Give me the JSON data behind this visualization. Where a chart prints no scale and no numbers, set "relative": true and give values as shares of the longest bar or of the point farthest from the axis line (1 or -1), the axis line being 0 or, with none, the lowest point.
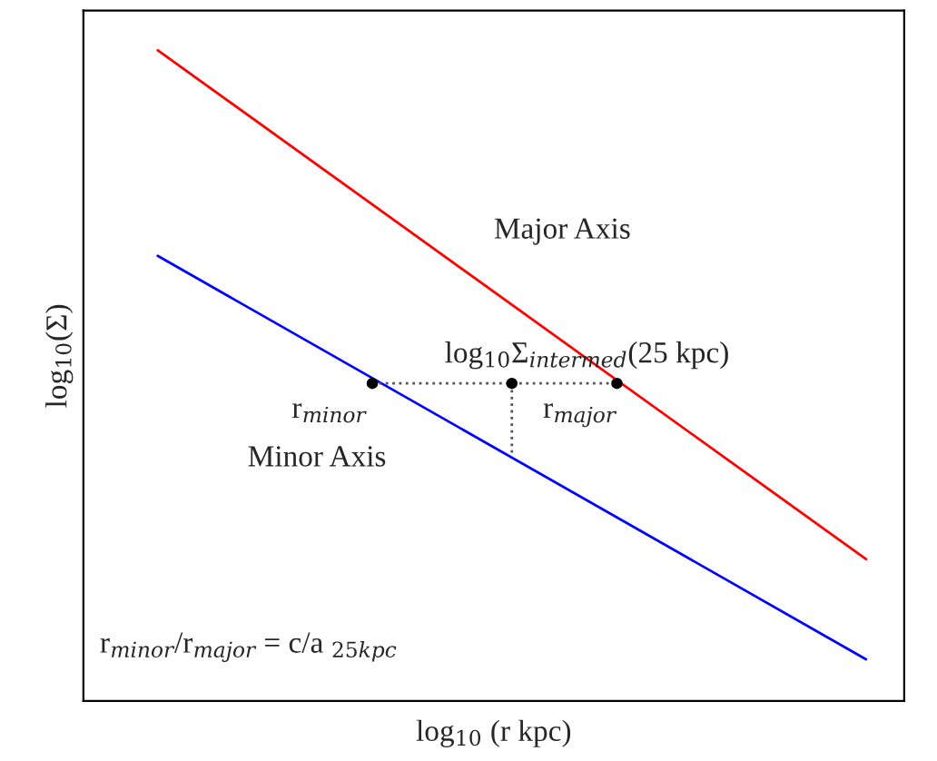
{
  "chart_data": {
    "type": "line",
    "relative": true,
    "xlabel": "log$_{10}$ (r kpc)",
    "ylabel": "log$_{10}$(Σ)",
    "categories": [
      null,
      null
    ],
    "series": [
      {
        "color": "#ff0000",
        "values": [
          1,
          0.218
        ]
      },
      {
        "color": "#0000ff",
        "values": [
          0.684,
          0.064
        ]
      }
    ],
    "annotations": [
      "r$_{minor}$",
      "log$_{10}$Σ$_{intermed}$(25 kpc)",
      "r$_{major}$",
      "Major Axis",
      "Minor Axis",
      "r$_{minor}$/r$_{major}$ = c/a $_{25kpc}$"
    ]
  }
}
